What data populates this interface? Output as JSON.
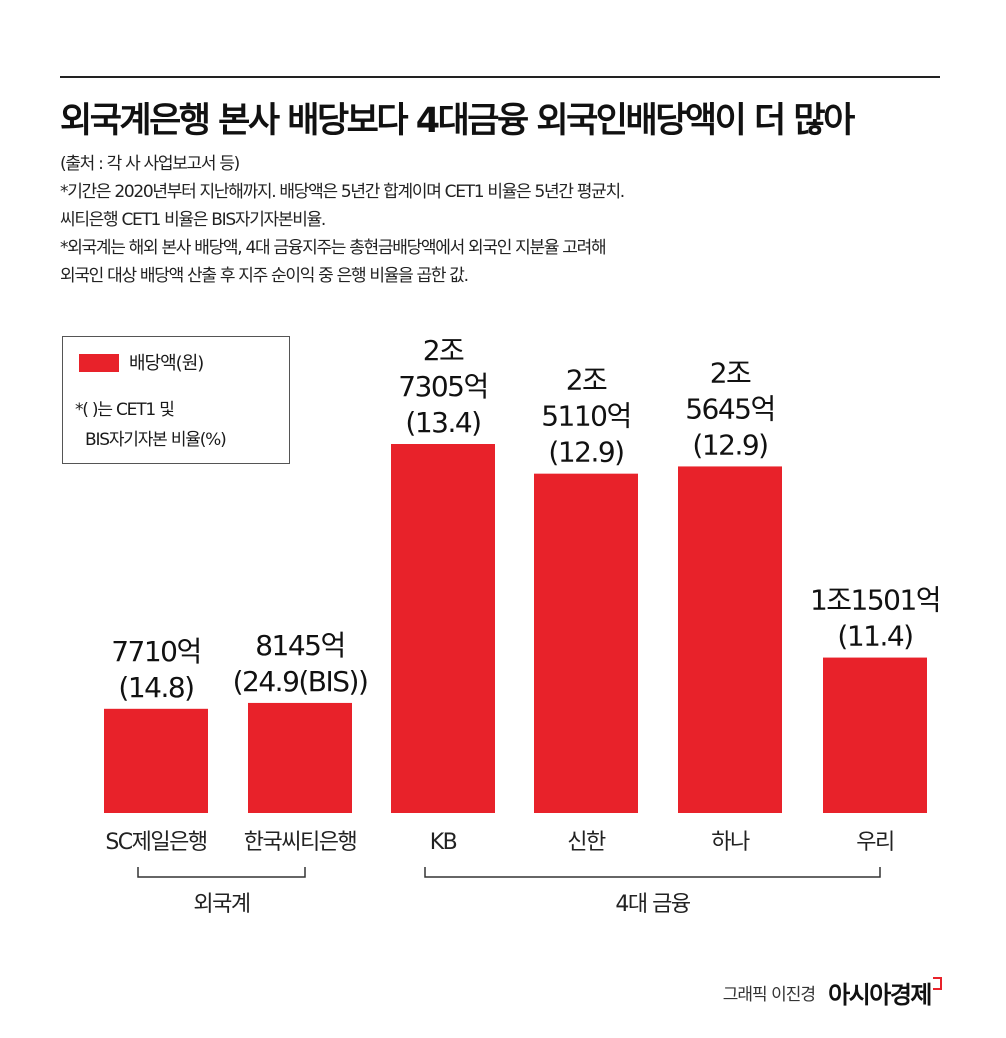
{
  "title": "외국계은행 본사 배당보다 4대금융 외국인배당액이 더 많아",
  "notes": [
    "(출처 : 각 사 사업보고서 등)",
    "*기간은 2020년부터 지난해까지. 배당액은 5년간 합계이며 CET1 비율은 5년간 평균치.",
    "씨티은행 CET1 비율은 BIS자기자본비율.",
    "*외국계는 해외 본사 배당액, 4대 금융지주는 총현금배당액에서 외국인 지분율 고려해",
    "외국인 대상 배당액 산출 후 지주 순이익 중 은행 비율을 곱한 값."
  ],
  "legend": {
    "series_label": "배당액(원)",
    "note_line1": "*(   )는 CET1 및",
    "note_line2": "BIS자기자본 비율(%)"
  },
  "colors": {
    "bar": "#e8222a"
  },
  "chart_data": {
    "type": "bar",
    "categories": [
      "SC제일은행",
      "한국씨티은행",
      "KB",
      "신한",
      "하나",
      "우리"
    ],
    "values": [
      7710,
      8145,
      27305,
      25110,
      25645,
      11501
    ],
    "value_unit": "억원",
    "data_labels": [
      [
        "7710억",
        "(14.8)"
      ],
      [
        "8145억",
        "(24.9(BIS))"
      ],
      [
        "2조",
        "7305억",
        "(13.4)"
      ],
      [
        "2조",
        "5110억",
        "(12.9)"
      ],
      [
        "2조",
        "5645억",
        "(12.9)"
      ],
      [
        "1조1501억",
        "(11.4)"
      ]
    ],
    "groups": [
      {
        "label": "외국계",
        "categories": [
          "SC제일은행",
          "한국씨티은행"
        ]
      },
      {
        "label": "4대 금융",
        "categories": [
          "KB",
          "신한",
          "하나",
          "우리"
        ]
      }
    ]
  },
  "credit": {
    "text": "그래픽 이진경",
    "brand": "아시아경제"
  }
}
